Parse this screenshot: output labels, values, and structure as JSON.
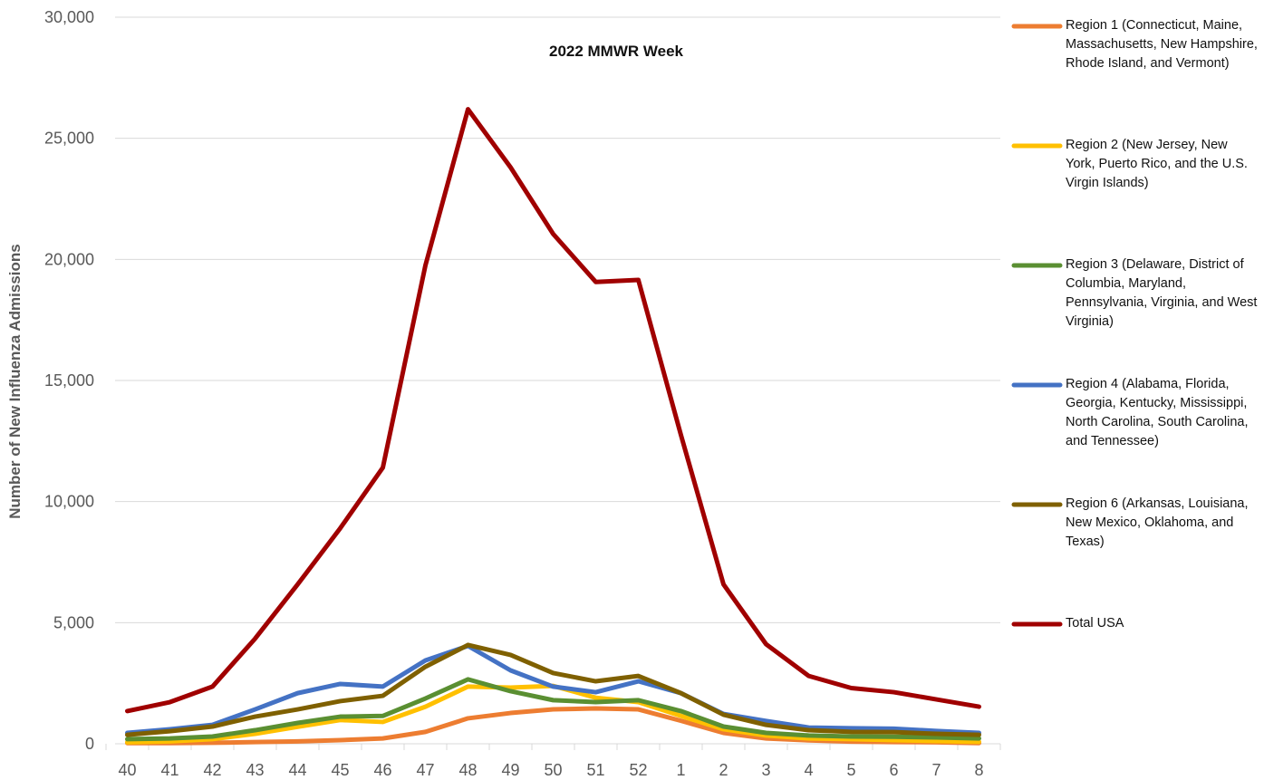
{
  "chart_data": {
    "type": "line",
    "title": "2022 MMWR Week",
    "y_label": "Number of New Influenza Admissions",
    "categories": [
      "40",
      "41",
      "42",
      "43",
      "44",
      "45",
      "46",
      "47",
      "48",
      "49",
      "50",
      "51",
      "52",
      "1",
      "2",
      "3",
      "4",
      "5",
      "6",
      "7",
      "8"
    ],
    "ylim": [
      0,
      30000
    ],
    "yticks": [
      0,
      {
        "value": 5000,
        "label": "5,000"
      },
      {
        "value": 10000,
        "label": "10,000"
      },
      {
        "value": 15000,
        "label": "15,000"
      },
      {
        "value": 20000,
        "label": "20,000"
      },
      {
        "value": 25000,
        "label": "25,000"
      },
      {
        "value": 30000,
        "label": "30,000"
      }
    ],
    "grid": true,
    "legend": "right",
    "series": [
      {
        "name": "Region 1 (Connecticut, Maine, Massachusetts, New Hampshire, Rhode Island, and Vermont)",
        "color": "#ed7d31",
        "values": [
          30,
          30,
          40,
          70,
          100,
          150,
          220,
          490,
          1050,
          1270,
          1420,
          1460,
          1420,
          950,
          450,
          220,
          140,
          90,
          70,
          60,
          30
        ]
      },
      {
        "name": "Region 2 (New Jersey, New York, Puerto Rico, and the U.S. Virgin Islands)",
        "color": "#ffc000",
        "values": [
          60,
          100,
          190,
          410,
          700,
          980,
          900,
          1530,
          2360,
          2320,
          2390,
          1900,
          1720,
          1150,
          600,
          340,
          220,
          190,
          150,
          110,
          80
        ]
      },
      {
        "name": "Region 3 (Delaware, District of Columbia, Maryland, Pennsylvania, Virginia, and West Virginia)",
        "color": "#5a8f32",
        "values": [
          190,
          220,
          300,
          560,
          860,
          1120,
          1150,
          1870,
          2660,
          2170,
          1800,
          1720,
          1800,
          1350,
          710,
          450,
          340,
          300,
          290,
          260,
          220
        ]
      },
      {
        "name": "Region 4 (Alabama, Florida, Georgia, Kentucky, Mississippi, North Carolina, South Carolina, and Tennessee)",
        "color": "#4472c4",
        "values": [
          450,
          600,
          780,
          1420,
          2090,
          2470,
          2360,
          3440,
          4040,
          3030,
          2360,
          2130,
          2580,
          2090,
          1230,
          940,
          670,
          640,
          620,
          530,
          450
        ]
      },
      {
        "name": "Region 6 (Arkansas, Louisiana, New Mexico, Oklahoma, and Texas)",
        "color": "#7f6000",
        "values": [
          370,
          520,
          710,
          1120,
          1420,
          1760,
          1980,
          3180,
          4080,
          3670,
          2920,
          2580,
          2800,
          2090,
          1200,
          780,
          560,
          490,
          480,
          410,
          370
        ]
      },
      {
        "name": "Total USA",
        "color": "#a00000",
        "values": [
          1350,
          1720,
          2360,
          4340,
          6580,
          8900,
          11400,
          19750,
          26200,
          23800,
          21050,
          19070,
          19150,
          12750,
          6580,
          4110,
          2800,
          2300,
          2130,
          1830,
          1530
        ]
      }
    ]
  }
}
